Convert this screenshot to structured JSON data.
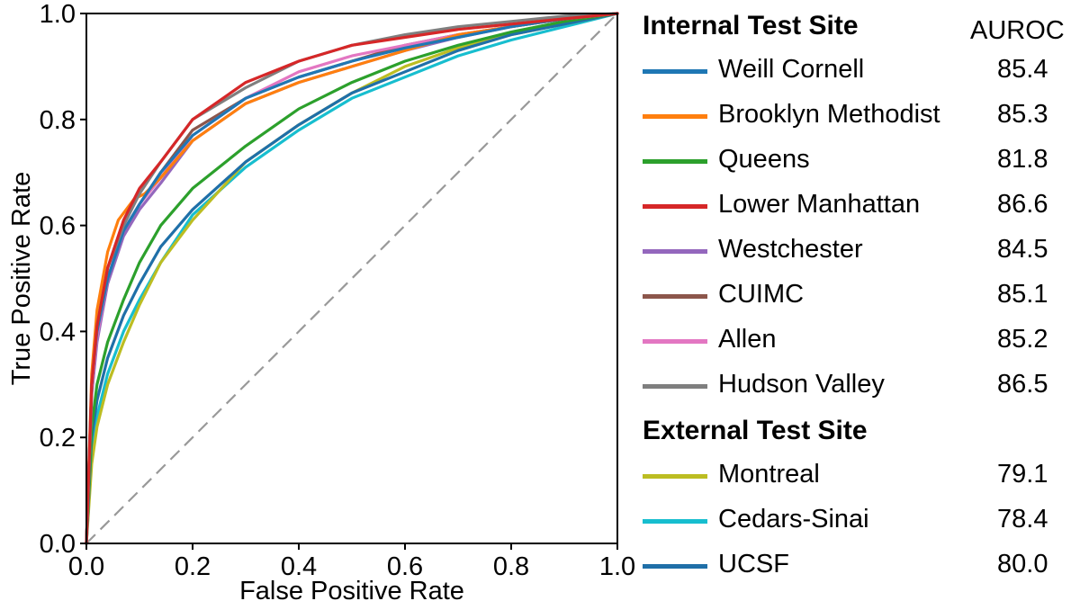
{
  "chart_data": {
    "type": "line",
    "title": "",
    "xlabel": "False Positive Rate",
    "ylabel": "True Positive Rate",
    "xlim": [
      0.0,
      1.0
    ],
    "ylim": [
      0.0,
      1.0
    ],
    "xticks": [
      "0.0",
      "0.2",
      "0.4",
      "0.6",
      "0.8",
      "1.0"
    ],
    "yticks": [
      "0.0",
      "0.2",
      "0.4",
      "0.6",
      "0.8",
      "1.0"
    ],
    "grid": false,
    "legend_position": "right",
    "reference_line": {
      "name": "chance",
      "x": [
        0,
        1
      ],
      "y": [
        0,
        1
      ],
      "style": "dashed",
      "color": "#999999"
    },
    "legend": {
      "internal_heading": "Internal Test Site",
      "external_heading": "External Test Site",
      "metric_heading": "AUROC"
    },
    "series": [
      {
        "name": "Weill Cornell",
        "group": "internal",
        "auroc": "85.4",
        "color": "#1f77b4",
        "x": [
          0,
          0.01,
          0.02,
          0.04,
          0.07,
          0.1,
          0.14,
          0.2,
          0.3,
          0.4,
          0.5,
          0.6,
          0.7,
          0.8,
          0.9,
          1.0
        ],
        "y": [
          0,
          0.3,
          0.4,
          0.5,
          0.59,
          0.64,
          0.7,
          0.77,
          0.84,
          0.88,
          0.91,
          0.935,
          0.955,
          0.975,
          0.99,
          1.0
        ]
      },
      {
        "name": "Brooklyn Methodist",
        "group": "internal",
        "auroc": "85.3",
        "color": "#ff7f0e",
        "x": [
          0,
          0.01,
          0.02,
          0.04,
          0.06,
          0.09,
          0.11,
          0.14,
          0.2,
          0.3,
          0.4,
          0.5,
          0.6,
          0.7,
          0.8,
          0.9,
          1.0
        ],
        "y": [
          0,
          0.32,
          0.44,
          0.55,
          0.61,
          0.65,
          0.66,
          0.69,
          0.76,
          0.83,
          0.87,
          0.9,
          0.93,
          0.96,
          0.975,
          0.99,
          1.0
        ]
      },
      {
        "name": "Queens",
        "group": "internal",
        "auroc": "81.8",
        "color": "#2ca02c",
        "x": [
          0,
          0.01,
          0.02,
          0.04,
          0.07,
          0.1,
          0.14,
          0.2,
          0.3,
          0.4,
          0.5,
          0.6,
          0.7,
          0.8,
          0.9,
          1.0
        ],
        "y": [
          0,
          0.22,
          0.3,
          0.38,
          0.46,
          0.53,
          0.6,
          0.67,
          0.75,
          0.82,
          0.87,
          0.91,
          0.94,
          0.965,
          0.985,
          1.0
        ]
      },
      {
        "name": "Lower Manhattan",
        "group": "internal",
        "auroc": "86.6",
        "color": "#d62728",
        "x": [
          0,
          0.01,
          0.02,
          0.04,
          0.07,
          0.1,
          0.14,
          0.2,
          0.3,
          0.4,
          0.5,
          0.6,
          0.7,
          0.8,
          0.9,
          1.0
        ],
        "y": [
          0,
          0.3,
          0.41,
          0.52,
          0.61,
          0.67,
          0.72,
          0.8,
          0.87,
          0.91,
          0.94,
          0.955,
          0.97,
          0.98,
          0.99,
          1.0
        ]
      },
      {
        "name": "Westchester",
        "group": "internal",
        "auroc": "84.5",
        "color": "#9467bd",
        "x": [
          0,
          0.01,
          0.02,
          0.04,
          0.07,
          0.1,
          0.14,
          0.2,
          0.3,
          0.4,
          0.5,
          0.6,
          0.7,
          0.8,
          0.9,
          1.0
        ],
        "y": [
          0,
          0.28,
          0.38,
          0.49,
          0.58,
          0.63,
          0.68,
          0.76,
          0.83,
          0.87,
          0.9,
          0.93,
          0.955,
          0.975,
          0.99,
          1.0
        ]
      },
      {
        "name": "CUIMC",
        "group": "internal",
        "auroc": "85.1",
        "color": "#8c564b",
        "x": [
          0,
          0.01,
          0.02,
          0.04,
          0.07,
          0.1,
          0.14,
          0.2,
          0.3,
          0.4,
          0.5,
          0.6,
          0.7,
          0.8,
          0.9,
          1.0
        ],
        "y": [
          0,
          0.29,
          0.4,
          0.5,
          0.59,
          0.64,
          0.7,
          0.78,
          0.84,
          0.88,
          0.91,
          0.94,
          0.96,
          0.975,
          0.99,
          1.0
        ]
      },
      {
        "name": "Allen",
        "group": "internal",
        "auroc": "85.2",
        "color": "#e377c2",
        "x": [
          0,
          0.01,
          0.02,
          0.04,
          0.07,
          0.1,
          0.14,
          0.2,
          0.3,
          0.4,
          0.5,
          0.6,
          0.7,
          0.8,
          0.9,
          1.0
        ],
        "y": [
          0,
          0.29,
          0.39,
          0.5,
          0.59,
          0.64,
          0.69,
          0.77,
          0.84,
          0.89,
          0.92,
          0.94,
          0.96,
          0.975,
          0.99,
          1.0
        ]
      },
      {
        "name": "Hudson Valley",
        "group": "internal",
        "auroc": "86.5",
        "color": "#7f7f7f",
        "x": [
          0,
          0.01,
          0.02,
          0.04,
          0.07,
          0.1,
          0.14,
          0.2,
          0.3,
          0.4,
          0.5,
          0.6,
          0.7,
          0.8,
          0.9,
          1.0
        ],
        "y": [
          0,
          0.3,
          0.41,
          0.52,
          0.6,
          0.66,
          0.72,
          0.8,
          0.86,
          0.91,
          0.94,
          0.96,
          0.975,
          0.985,
          0.995,
          1.0
        ]
      },
      {
        "name": "Montreal",
        "group": "external",
        "auroc": "79.1",
        "color": "#bcbd22",
        "x": [
          0,
          0.01,
          0.02,
          0.04,
          0.07,
          0.1,
          0.14,
          0.2,
          0.3,
          0.4,
          0.5,
          0.6,
          0.7,
          0.8,
          0.9,
          1.0
        ],
        "y": [
          0,
          0.15,
          0.22,
          0.3,
          0.38,
          0.45,
          0.53,
          0.61,
          0.72,
          0.79,
          0.85,
          0.9,
          0.935,
          0.96,
          0.98,
          1.0
        ]
      },
      {
        "name": "Cedars-Sinai",
        "group": "external",
        "auroc": "78.4",
        "color": "#17becf",
        "x": [
          0,
          0.01,
          0.02,
          0.04,
          0.07,
          0.1,
          0.14,
          0.2,
          0.3,
          0.4,
          0.5,
          0.6,
          0.7,
          0.8,
          0.9,
          1.0
        ],
        "y": [
          0,
          0.17,
          0.24,
          0.32,
          0.4,
          0.46,
          0.53,
          0.62,
          0.71,
          0.78,
          0.84,
          0.88,
          0.92,
          0.95,
          0.975,
          1.0
        ]
      },
      {
        "name": "UCSF",
        "group": "external",
        "auroc": "80.0",
        "color": "#1f6fa8",
        "x": [
          0,
          0.01,
          0.02,
          0.04,
          0.07,
          0.1,
          0.14,
          0.2,
          0.3,
          0.4,
          0.5,
          0.6,
          0.7,
          0.8,
          0.9,
          1.0
        ],
        "y": [
          0,
          0.2,
          0.27,
          0.35,
          0.43,
          0.49,
          0.56,
          0.63,
          0.72,
          0.79,
          0.85,
          0.89,
          0.93,
          0.96,
          0.98,
          1.0
        ]
      }
    ]
  }
}
